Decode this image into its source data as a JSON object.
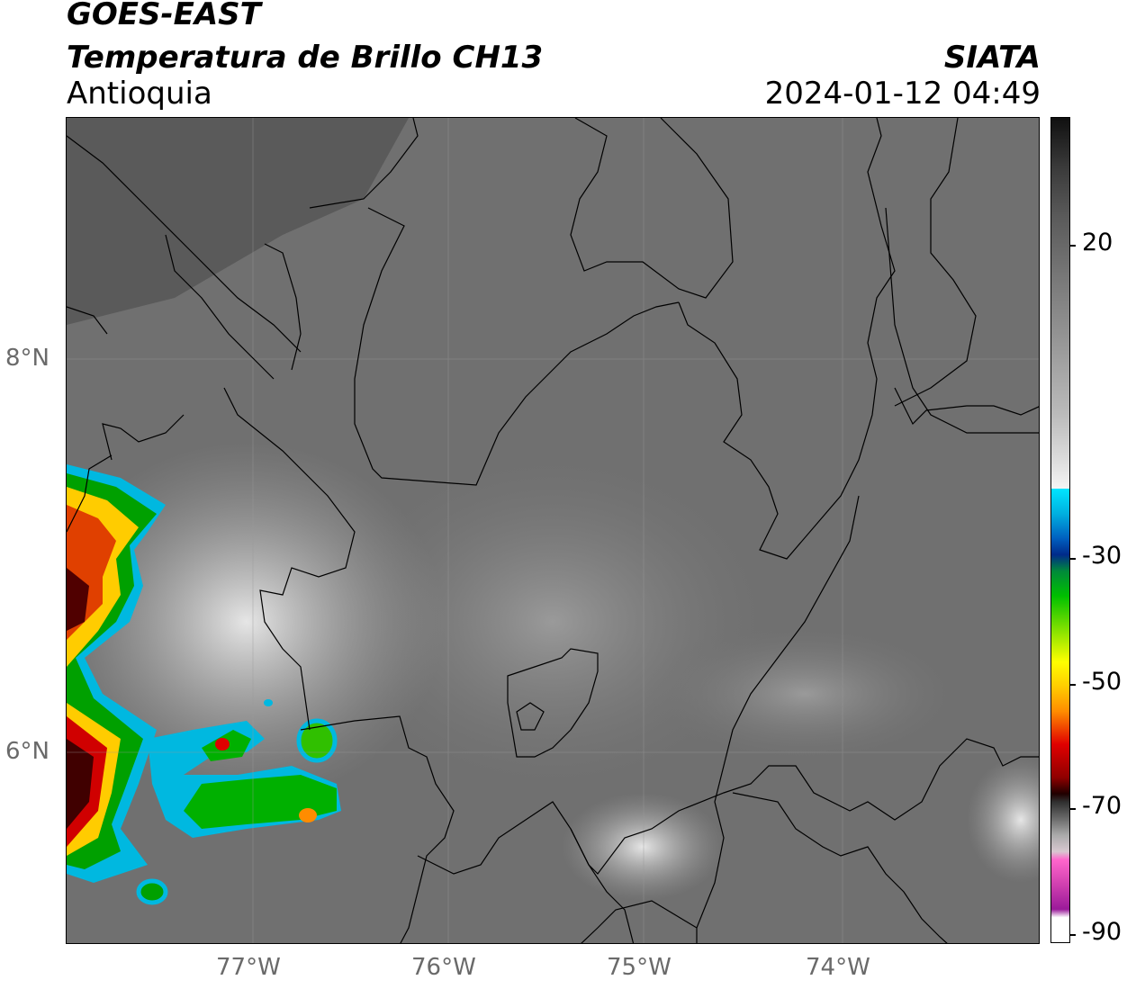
{
  "header": {
    "satellite": "GOES-EAST",
    "product": "Temperatura de Brillo CH13",
    "region": "Antioquia",
    "agency": "SIATA",
    "timestamp": "2024-01-12 04:49"
  },
  "map": {
    "lat_labels": [
      "8°N",
      "6°N"
    ],
    "lon_labels": [
      "77°W",
      "76°W",
      "75°W",
      "74°W"
    ]
  },
  "colorbar": {
    "tick_labels": [
      "20",
      "-30",
      "-50",
      "-70",
      "-90"
    ],
    "colors": {
      "cold_clouds": [
        "#00e5ff",
        "#0040b0",
        "#00c000",
        "#ffff00",
        "#ff8c00",
        "#e00000",
        "#300000",
        "#9a9a9a",
        "#ff66cc",
        "#9a1a9a"
      ],
      "background_gray": "#6e6e6e"
    }
  }
}
